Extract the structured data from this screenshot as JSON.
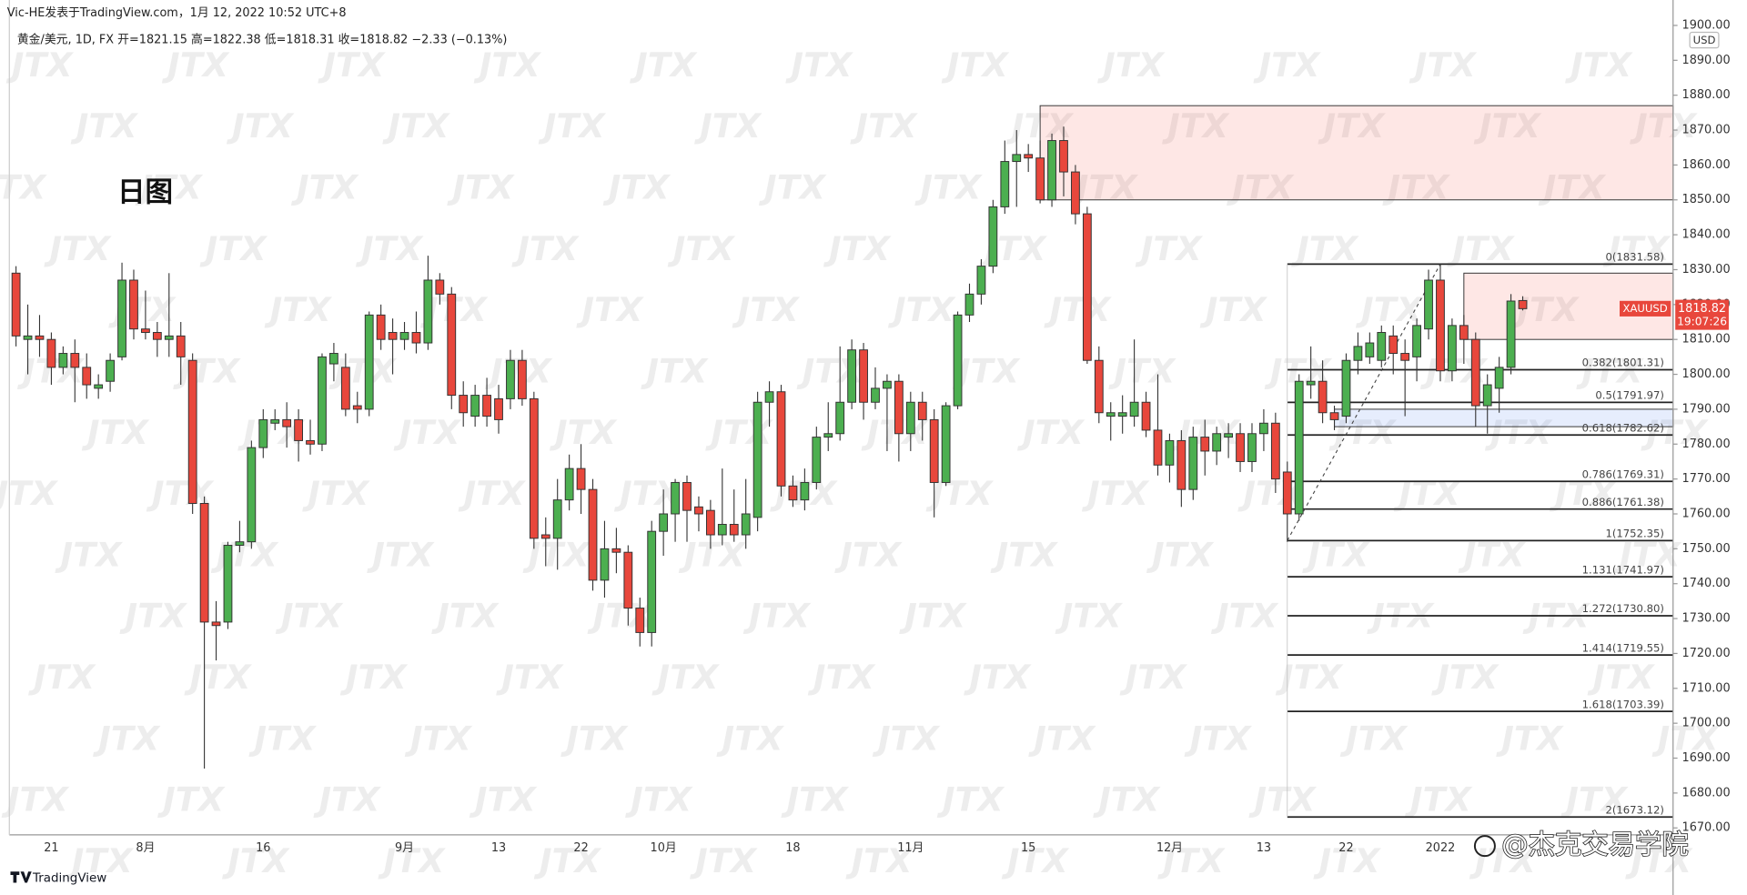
{
  "chart_data": {
    "type": "candlestick",
    "publisher": "Vic-HE发表于TradingView.com，1月 12, 2022 10:52 UTC+8",
    "legend_line": "黄金/美元, 1D, FX  开=1821.15  高=1822.38  低=1818.31  收=1818.82  −2.33 (−0.13%)",
    "annotation": "日图",
    "currency": "USD",
    "symbol": "XAUUSD",
    "countdown": "19:07:26",
    "brand": "TradingView",
    "signature": "@杰克交易学院",
    "watermark": "JTX",
    "up_color": "#4caf50",
    "down_color": "#e8473c",
    "categories": [
      null,
      null,
      null,
      "21",
      null,
      null,
      null,
      null,
      null,
      null,
      null,
      "8月",
      null,
      null,
      null,
      null,
      null,
      null,
      null,
      null,
      null,
      "16",
      null,
      null,
      null,
      null,
      null,
      null,
      null,
      null,
      null,
      null,
      null,
      "9月",
      null,
      null,
      null,
      null,
      null,
      null,
      null,
      "13",
      null,
      null,
      null,
      null,
      null,
      null,
      "22",
      null,
      null,
      null,
      null,
      null,
      null,
      "10月",
      null,
      null,
      null,
      null,
      null,
      null,
      null,
      null,
      null,
      null,
      "18",
      null,
      null,
      null,
      null,
      null,
      null,
      null,
      null,
      null,
      "11月",
      null,
      null,
      null,
      null,
      null,
      null,
      null,
      null,
      null,
      "15",
      null,
      null,
      null,
      null,
      null,
      null,
      null,
      null,
      null,
      null,
      null,
      "12月",
      null,
      null,
      null,
      null,
      null,
      null,
      null,
      "13",
      null,
      null,
      null,
      null,
      null,
      null,
      "22",
      null,
      null,
      null,
      null,
      null,
      null,
      null,
      "2022",
      null,
      null,
      null,
      null,
      null,
      null,
      null
    ],
    "open": [
      1829,
      1810,
      1811,
      1810,
      1802,
      1806,
      1802,
      1796,
      1798,
      1805,
      1827,
      1813,
      1812,
      1810,
      1811,
      1804,
      1763,
      1729,
      1729,
      1751,
      1752,
      1779,
      1786,
      1787,
      1787,
      1781,
      1780,
      1803,
      1802,
      1791,
      1790,
      1817,
      1812,
      1810,
      1812,
      1809,
      1827,
      1823,
      1794,
      1788,
      1794,
      1793,
      1793,
      1804,
      1793,
      1754,
      1753,
      1764,
      1773,
      1767,
      1741,
      1750,
      1749,
      1733,
      1726,
      1755,
      1760,
      1769,
      1762,
      1761,
      1754,
      1757,
      1754,
      1759,
      1792,
      1795,
      1768,
      1764,
      1769,
      1782,
      1783,
      1792,
      1807,
      1792,
      1796,
      1798,
      1783,
      1792,
      1787,
      1769,
      1791,
      1817,
      1823,
      1831,
      1848,
      1861,
      1863,
      1862,
      1850,
      1867,
      1858,
      1846,
      1804,
      1788,
      1788,
      1788,
      1792,
      1784,
      1774,
      1781,
      1767,
      1782,
      1778,
      1782,
      1783,
      1775,
      1783,
      1786,
      1772,
      1760,
      1797,
      1798,
      1789,
      1788,
      1804,
      1805,
      1804,
      1811,
      1806,
      1805,
      1813,
      1827,
      1801,
      1814,
      1810,
      1791,
      1796,
      1802,
      1821.15
    ],
    "high": [
      1831,
      1820,
      1817,
      1812,
      1808,
      1810,
      1806,
      1800,
      1806,
      1832,
      1830,
      1824,
      1815,
      1829,
      1815,
      1806,
      1765,
      1735,
      1752,
      1758,
      1781,
      1790,
      1790,
      1792,
      1790,
      1787,
      1806,
      1809,
      1806,
      1795,
      1818,
      1820,
      1816,
      1815,
      1818,
      1834,
      1829,
      1825,
      1798,
      1797,
      1799,
      1797,
      1807,
      1807,
      1795,
      1759,
      1770,
      1777,
      1780,
      1770,
      1758,
      1756,
      1751,
      1736,
      1758,
      1767,
      1770,
      1771,
      1765,
      1764,
      1773,
      1767,
      1770,
      1795,
      1798,
      1797,
      1771,
      1773,
      1785,
      1792,
      1808,
      1810,
      1809,
      1802,
      1800,
      1800,
      1795,
      1795,
      1790,
      1792,
      1818,
      1826,
      1833,
      1850,
      1867,
      1870,
      1866,
      1867,
      1869,
      1871,
      1860,
      1848,
      1808,
      1792,
      1794,
      1810,
      1795,
      1800,
      1783,
      1784,
      1785,
      1787,
      1785,
      1786,
      1786,
      1786,
      1790,
      1789,
      1775,
      1800,
      1808,
      1804,
      1791,
      1806,
      1812,
      1812,
      1814,
      1814,
      1810,
      1816,
      1830,
      1831.58,
      1816,
      1817,
      1812,
      1800,
      1805,
      1823,
      1822.38
    ],
    "low": [
      1808,
      1800,
      1805,
      1797,
      1800,
      1792,
      1793,
      1793,
      1795,
      1804,
      1810,
      1810,
      1805,
      1805,
      1797,
      1760,
      1687,
      1718,
      1727,
      1749,
      1750,
      1776,
      1784,
      1779,
      1775,
      1777,
      1778,
      1798,
      1788,
      1786,
      1788,
      1807,
      1800,
      1807,
      1806,
      1807,
      1820,
      1790,
      1785,
      1785,
      1785,
      1783,
      1790,
      1791,
      1750,
      1745,
      1744,
      1761,
      1760,
      1738,
      1736,
      1743,
      1728,
      1722,
      1722,
      1748,
      1752,
      1752,
      1755,
      1750,
      1751,
      1752,
      1750,
      1755,
      1785,
      1765,
      1762,
      1761,
      1767,
      1778,
      1781,
      1790,
      1787,
      1790,
      1778,
      1775,
      1778,
      1781,
      1759,
      1768,
      1790,
      1815,
      1820,
      1829,
      1846,
      1848,
      1858,
      1849,
      1848,
      1851,
      1843,
      1803,
      1786,
      1781,
      1783,
      1785,
      1782,
      1771,
      1769,
      1762,
      1764,
      1771,
      1774,
      1776,
      1772,
      1772,
      1778,
      1766,
      1752,
      1758,
      1793,
      1786,
      1784,
      1786,
      1800,
      1803,
      1802,
      1800,
      1788,
      1798,
      1810,
      1798,
      1798,
      1803,
      1785,
      1783,
      1789,
      1800,
      1818.31
    ],
    "close": [
      1811,
      1811,
      1810,
      1802,
      1806,
      1802,
      1797,
      1797,
      1804,
      1827,
      1813,
      1812,
      1810,
      1811,
      1805,
      1763,
      1729,
      1728,
      1751,
      1752,
      1779,
      1787,
      1787,
      1785,
      1781,
      1780,
      1805,
      1806,
      1790,
      1790,
      1817,
      1810,
      1810,
      1812,
      1809,
      1827,
      1823,
      1794,
      1789,
      1794,
      1788,
      1787,
      1804,
      1793,
      1753,
      1753,
      1764,
      1773,
      1767,
      1741,
      1750,
      1749,
      1733,
      1726,
      1755,
      1760,
      1769,
      1761,
      1760,
      1754,
      1757,
      1754,
      1760,
      1792,
      1795,
      1768,
      1764,
      1769,
      1782,
      1783,
      1792,
      1807,
      1792,
      1796,
      1798,
      1783,
      1792,
      1787,
      1769,
      1791,
      1817,
      1823,
      1831,
      1848,
      1861,
      1863,
      1862,
      1850,
      1867,
      1858,
      1846,
      1804,
      1789,
      1789,
      1789,
      1792,
      1784,
      1774,
      1781,
      1767,
      1782,
      1778,
      1783,
      1783,
      1775,
      1783,
      1786,
      1770,
      1760,
      1798,
      1798,
      1789,
      1787,
      1804,
      1808,
      1809,
      1812,
      1806,
      1804,
      1814,
      1827,
      1801,
      1814,
      1810,
      1791,
      1797,
      1802,
      1821,
      1818.82
    ],
    "ylim": [
      1668,
      1902.5
    ],
    "yticks": [
      {
        "value": 1670,
        "label": "1670.00"
      },
      {
        "value": 1680,
        "label": "1680.00"
      },
      {
        "value": 1690,
        "label": "1690.00"
      },
      {
        "value": 1700,
        "label": "1700.00"
      },
      {
        "value": 1710,
        "label": "1710.00"
      },
      {
        "value": 1720,
        "label": "1720.00"
      },
      {
        "value": 1730,
        "label": "1730.00"
      },
      {
        "value": 1740,
        "label": "1740.00"
      },
      {
        "value": 1750,
        "label": "1750.00"
      },
      {
        "value": 1760,
        "label": "1760.00"
      },
      {
        "value": 1770,
        "label": "1770.00"
      },
      {
        "value": 1780,
        "label": "1780.00"
      },
      {
        "value": 1790,
        "label": "1790.00"
      },
      {
        "value": 1800,
        "label": "1800.00"
      },
      {
        "value": 1810,
        "label": "1810.00"
      },
      {
        "value": 1820,
        "label": "1820.00"
      },
      {
        "value": 1830,
        "label": "1830.00"
      },
      {
        "value": 1840,
        "label": "1840.00"
      },
      {
        "value": 1850,
        "label": "1850.00"
      },
      {
        "value": 1860,
        "label": "1860.00"
      },
      {
        "value": 1870,
        "label": "1870.00"
      },
      {
        "value": 1880,
        "label": "1880.00"
      },
      {
        "value": 1890,
        "label": "1890.00"
      },
      {
        "value": 1900,
        "label": "1900.00"
      }
    ],
    "zones": [
      {
        "start_index": 87,
        "low": 1850,
        "high": 1877,
        "color": "rgba(244,67,54,0.13)"
      },
      {
        "start_index": 123,
        "low": 1810,
        "high": 1829,
        "color": "rgba(244,67,54,0.13)"
      },
      {
        "start_index": 112,
        "low": 1785,
        "high": 1790,
        "color": "rgba(80,130,240,0.14)"
      }
    ],
    "fib": {
      "start_index": 108,
      "end_index": 121,
      "color": "#222",
      "levels": [
        {
          "value": 1831.58,
          "label": "0(1831.58)"
        },
        {
          "value": 1801.31,
          "label": "0.382(1801.31)"
        },
        {
          "value": 1791.97,
          "label": "0.5(1791.97)"
        },
        {
          "value": 1782.62,
          "label": "0.618(1782.62)"
        },
        {
          "value": 1769.31,
          "label": "0.786(1769.31)"
        },
        {
          "value": 1761.38,
          "label": "0.886(1761.38)"
        },
        {
          "value": 1752.35,
          "label": "1(1752.35)"
        },
        {
          "value": 1741.97,
          "label": "1.131(1741.97)"
        },
        {
          "value": 1730.8,
          "label": "1.272(1730.80)"
        },
        {
          "value": 1719.55,
          "label": "1.414(1719.55)"
        },
        {
          "value": 1703.39,
          "label": "1.618(1703.39)"
        },
        {
          "value": 1673.12,
          "label": "2(1673.12)"
        }
      ]
    }
  }
}
